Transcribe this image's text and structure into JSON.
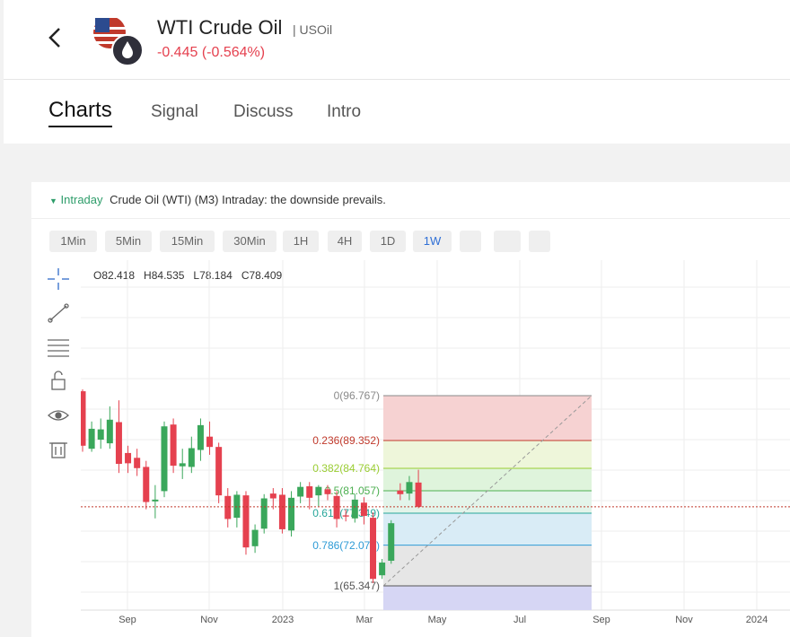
{
  "header": {
    "title": "WTI Crude Oil",
    "symbol": "| USOil",
    "change": "-0.445 (-0.564%)"
  },
  "tabs": [
    "Charts",
    "Signal",
    "Discuss",
    "Intro"
  ],
  "active_tab": 0,
  "analysis": {
    "tag": "Intraday",
    "text": "Crude Oil (WTI) (M3) Intraday: the downside prevails."
  },
  "timeframes": [
    "1Min",
    "5Min",
    "15Min",
    "30Min",
    "1H",
    "4H",
    "1D",
    "1W"
  ],
  "active_timeframe": 7,
  "chart": {
    "type": "candlestick",
    "ohlc_labels": [
      "O",
      "H",
      "L",
      "C"
    ],
    "up_color": "#3aa75b",
    "down_color": "#e5414f",
    "ylim": [
      61.35,
      119.15
    ],
    "x_labels": [
      "Sep",
      "Nov",
      "2023",
      "Mar",
      "May",
      "Jul",
      "Sep",
      "Nov",
      "2024"
    ],
    "candles": [
      {
        "open": 97.5,
        "high": 97.8,
        "low": 87.5,
        "close": 88.5
      },
      {
        "open": 88.0,
        "high": 92.5,
        "low": 87.5,
        "close": 91.3
      },
      {
        "open": 89.5,
        "high": 93.0,
        "low": 88.0,
        "close": 91.2
      },
      {
        "open": 88.9,
        "high": 95.0,
        "low": 88.0,
        "close": 92.8
      },
      {
        "open": 92.4,
        "high": 96.0,
        "low": 84.0,
        "close": 85.5
      },
      {
        "open": 87.3,
        "high": 88.5,
        "low": 84.0,
        "close": 85.6
      },
      {
        "open": 86.5,
        "high": 88.0,
        "low": 83.5,
        "close": 84.8
      },
      {
        "open": 85.0,
        "high": 86.0,
        "low": 78.0,
        "close": 79.2
      },
      {
        "open": 79.3,
        "high": 82.0,
        "low": 76.5,
        "close": 79.6
      },
      {
        "open": 81.0,
        "high": 92.5,
        "low": 80.0,
        "close": 91.7
      },
      {
        "open": 92.0,
        "high": 93.0,
        "low": 84.0,
        "close": 85.2
      },
      {
        "open": 85.1,
        "high": 88.0,
        "low": 83.0,
        "close": 85.6
      },
      {
        "open": 85.0,
        "high": 90.0,
        "low": 84.0,
        "close": 88.1
      },
      {
        "open": 87.8,
        "high": 93.0,
        "low": 86.0,
        "close": 91.9
      },
      {
        "open": 90.0,
        "high": 92.5,
        "low": 87.0,
        "close": 88.3
      },
      {
        "open": 88.3,
        "high": 89.0,
        "low": 79.0,
        "close": 80.3
      },
      {
        "open": 80.2,
        "high": 81.5,
        "low": 75.0,
        "close": 76.4
      },
      {
        "open": 76.6,
        "high": 81.0,
        "low": 75.0,
        "close": 80.4
      },
      {
        "open": 80.3,
        "high": 81.0,
        "low": 70.5,
        "close": 71.7
      },
      {
        "open": 71.9,
        "high": 75.5,
        "low": 70.8,
        "close": 74.6
      },
      {
        "open": 74.8,
        "high": 80.5,
        "low": 74.0,
        "close": 79.8
      },
      {
        "open": 80.6,
        "high": 81.5,
        "low": 78.0,
        "close": 79.8
      },
      {
        "open": 80.4,
        "high": 81.5,
        "low": 74.0,
        "close": 74.7
      },
      {
        "open": 74.5,
        "high": 81.0,
        "low": 73.5,
        "close": 79.9
      },
      {
        "open": 80.1,
        "high": 82.5,
        "low": 79.0,
        "close": 81.7
      },
      {
        "open": 81.8,
        "high": 82.5,
        "low": 78.0,
        "close": 79.9
      },
      {
        "open": 80.3,
        "high": 82.0,
        "low": 78.5,
        "close": 81.7
      },
      {
        "open": 81.3,
        "high": 82.0,
        "low": 79.5,
        "close": 80.5
      },
      {
        "open": 80.2,
        "high": 81.0,
        "low": 75.0,
        "close": 76.4
      },
      {
        "open": 77.0,
        "high": 78.0,
        "low": 76.0,
        "close": 76.8
      },
      {
        "open": 76.5,
        "high": 80.5,
        "low": 75.8,
        "close": 79.6
      },
      {
        "open": 79.1,
        "high": 80.0,
        "low": 75.5,
        "close": 76.9
      },
      {
        "open": 76.6,
        "high": 77.5,
        "low": 65.8,
        "close": 66.5
      },
      {
        "open": 67.1,
        "high": 69.8,
        "low": 66.5,
        "close": 69.2
      },
      {
        "open": 69.5,
        "high": 76.2,
        "low": 69.0,
        "close": 75.7
      },
      {
        "open": 81.1,
        "high": 82.3,
        "low": 79.5,
        "close": 80.5
      },
      {
        "open": 80.6,
        "high": 83.5,
        "low": 79.5,
        "close": 82.5
      },
      {
        "open": 82.418,
        "high": 84.535,
        "low": 78.184,
        "close": 78.409
      }
    ],
    "fibonacci": [
      {
        "value": 96.767,
        "label": "0(96.767)",
        "color": "#8a8a8a",
        "zone_color": "#f6d2d2"
      },
      {
        "value": 89.352,
        "label": "0.236(89.352)",
        "color": "#c0392b",
        "zone_color": "#eef6da"
      },
      {
        "value": 84.764,
        "label": "0.382(84.764)",
        "color": "#9acd32",
        "zone_color": "#dff4dc"
      },
      {
        "value": 81.057,
        "label": "0.5(81.057)",
        "color": "#4caf50",
        "zone_color": "#e3f4ea"
      },
      {
        "value": 77.349,
        "label": "0.618(77.349)",
        "color": "#26a69a",
        "zone_color": "#d9ecf6"
      },
      {
        "value": 72.071,
        "label": "0.786(72.071)",
        "color": "#2e9bd6",
        "zone_color": "#e6e6e6"
      },
      {
        "value": 65.347,
        "label": "1(65.347)",
        "color": "#555555",
        "zone_color": "#d6d6f4"
      }
    ]
  }
}
